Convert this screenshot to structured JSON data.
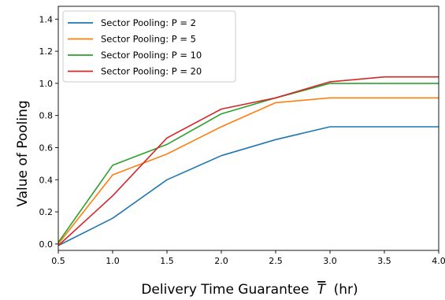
{
  "chart_data": {
    "type": "line",
    "title": "",
    "xlabel_main": "Delivery Time Guarantee",
    "xlabel_symbol": "T",
    "xlabel_unit": "(hr)",
    "ylabel": "Value of Pooling",
    "xlim": [
      0.5,
      4.0
    ],
    "ylim": [
      -0.04,
      1.48
    ],
    "xticks": [
      "0.5",
      "1.0",
      "1.5",
      "2.0",
      "2.5",
      "3.0",
      "3.5",
      "4.0"
    ],
    "yticks": [
      "0.0",
      "0.2",
      "0.4",
      "0.6",
      "0.8",
      "1.0",
      "1.2",
      "1.4"
    ],
    "grid": false,
    "legend_position": "top-left",
    "x": [
      0.5,
      1.0,
      1.5,
      2.0,
      2.5,
      3.0,
      3.5,
      4.0
    ],
    "series": [
      {
        "name": "Sector Pooling: P = 2",
        "color": "#1f77b4",
        "values": [
          -0.01,
          0.16,
          0.4,
          0.55,
          0.65,
          0.73,
          0.73,
          0.73
        ]
      },
      {
        "name": "Sector Pooling: P = 5",
        "color": "#ff7f0e",
        "values": [
          0.0,
          0.43,
          0.56,
          0.73,
          0.88,
          0.91,
          0.91,
          0.91
        ]
      },
      {
        "name": "Sector Pooling: P = 10",
        "color": "#2ca02c",
        "values": [
          0.01,
          0.49,
          0.62,
          0.81,
          0.91,
          1.0,
          1.0,
          1.0
        ]
      },
      {
        "name": "Sector Pooling: P = 20",
        "color": "#d62728",
        "values": [
          -0.01,
          0.3,
          0.66,
          0.84,
          0.91,
          1.01,
          1.04,
          1.04
        ]
      }
    ]
  }
}
